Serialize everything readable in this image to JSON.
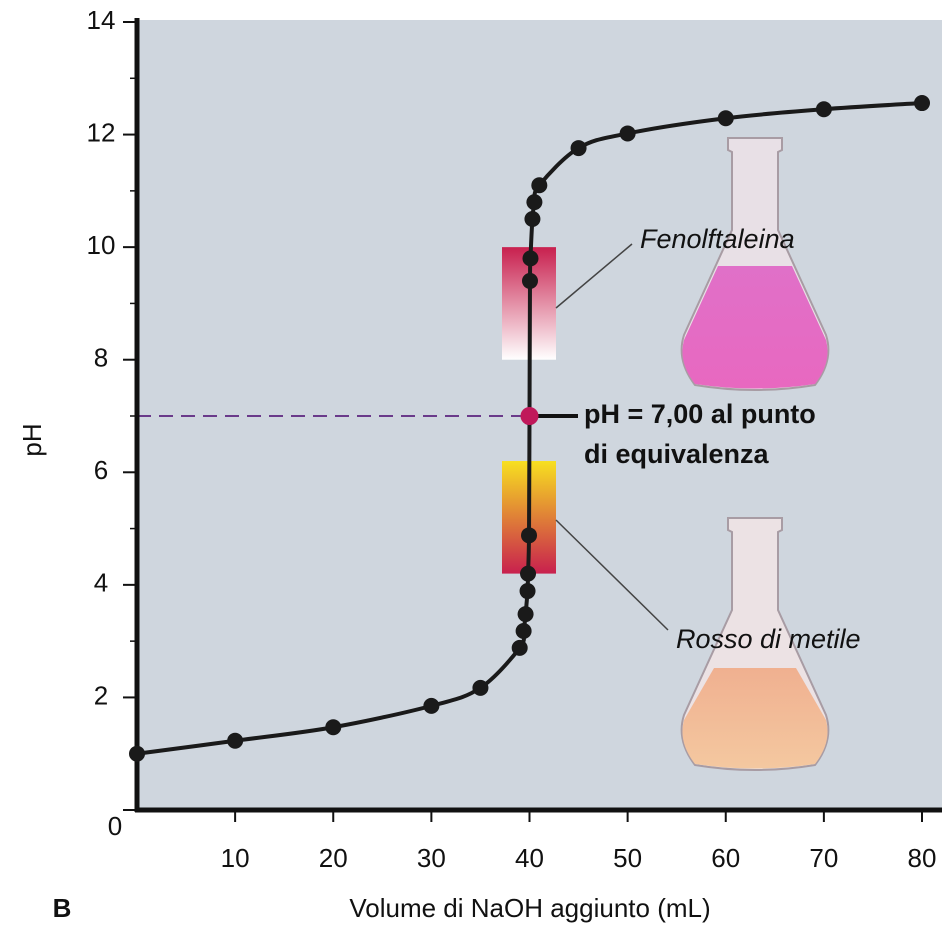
{
  "chart_data": {
    "type": "line",
    "panel_label": "B",
    "x_label": "Volume di NaOH aggiunto (mL)",
    "y_label": "pH",
    "xlim": [
      0,
      80
    ],
    "xticks": [
      10,
      20,
      30,
      40,
      50,
      60,
      70,
      80
    ],
    "ylim": [
      0,
      14
    ],
    "yticks": [
      0,
      2,
      4,
      6,
      8,
      10,
      12,
      14
    ],
    "series": [
      {
        "color": "#1a1a1a",
        "x": [
          0,
          10,
          20,
          30,
          35,
          39,
          39.4,
          39.6,
          39.8,
          39.85,
          39.95,
          40,
          40.05,
          40.1,
          40.3,
          40.5,
          41,
          45,
          50,
          60,
          70,
          80
        ],
        "values": [
          1.0,
          1.23,
          1.47,
          1.85,
          2.17,
          2.88,
          3.18,
          3.48,
          3.89,
          4.2,
          4.88,
          6.98,
          9.4,
          9.8,
          10.5,
          10.8,
          11.1,
          11.76,
          12.02,
          12.29,
          12.45,
          12.56
        ]
      }
    ],
    "equivalence": {
      "x": 40,
      "y": 7,
      "color": "#c0185a",
      "label": [
        "pH = 7,00 al punto",
        "di equivalenza"
      ]
    },
    "indicators": [
      {
        "name": "Fenolftaleina",
        "range": [
          8,
          10
        ],
        "colors": [
          "#ffffff",
          "#c8204e"
        ]
      },
      {
        "name": "Rosso di metile",
        "range": [
          4.2,
          6.2
        ],
        "colors": [
          "#c8204e",
          "#f7e020"
        ]
      }
    ]
  }
}
